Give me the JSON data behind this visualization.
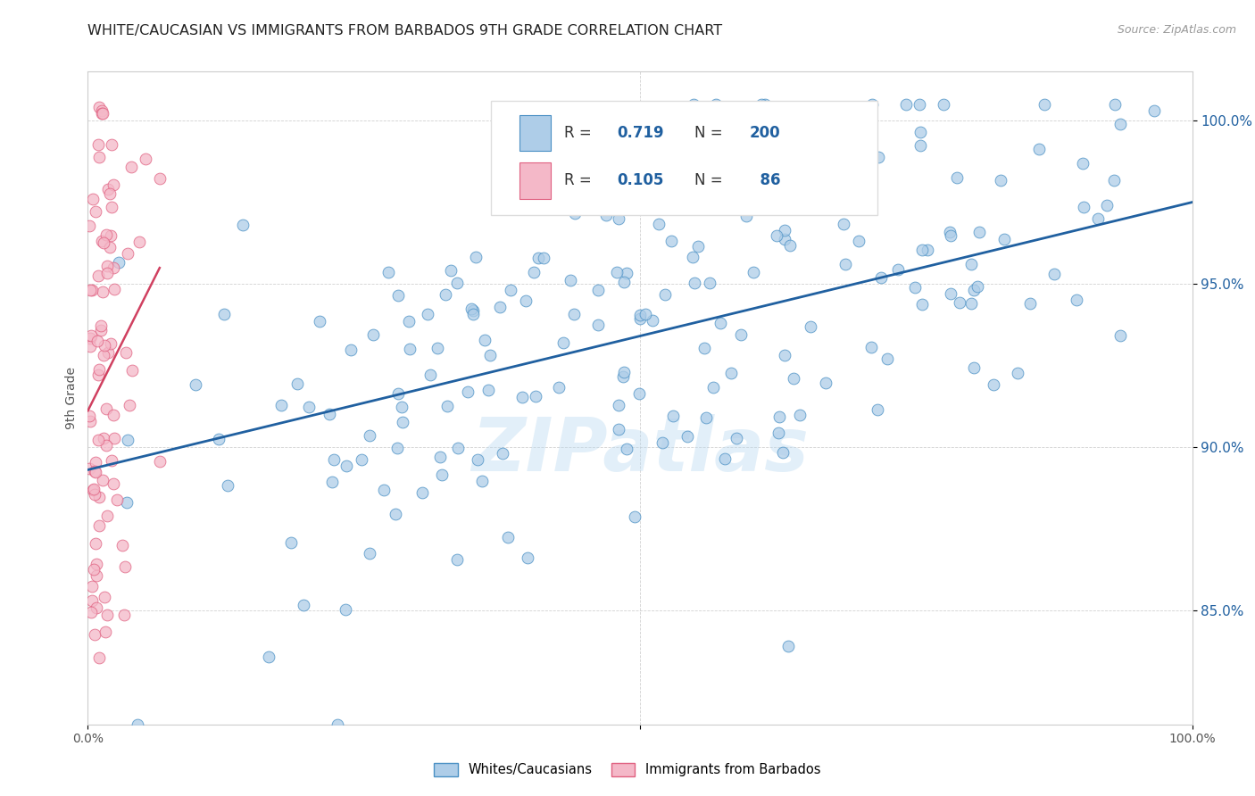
{
  "title": "WHITE/CAUCASIAN VS IMMIGRANTS FROM BARBADOS 9TH GRADE CORRELATION CHART",
  "source": "Source: ZipAtlas.com",
  "ylabel": "9th Grade",
  "watermark": "ZIPatlas",
  "blue_R": 0.719,
  "blue_N": 200,
  "pink_R": 0.105,
  "pink_N": 86,
  "blue_color": "#aecde8",
  "pink_color": "#f4b8c8",
  "blue_edge_color": "#4a90c4",
  "pink_edge_color": "#e06080",
  "blue_line_color": "#2060a0",
  "pink_line_color": "#d04060",
  "legend_label_blue": "Whites/Caucasians",
  "legend_label_pink": "Immigrants from Barbados",
  "ytick_labels": [
    "85.0%",
    "90.0%",
    "95.0%",
    "100.0%"
  ],
  "ytick_values": [
    0.85,
    0.9,
    0.95,
    1.0
  ],
  "xlim": [
    0.0,
    1.0
  ],
  "ylim": [
    0.815,
    1.015
  ],
  "blue_scatter_seed": 42,
  "pink_scatter_seed": 123
}
